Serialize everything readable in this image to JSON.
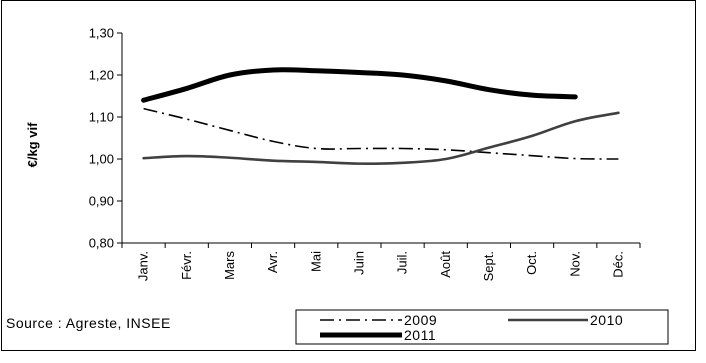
{
  "chart_data": {
    "type": "line",
    "ylabel": "€/kg vif",
    "ylim": [
      0.8,
      1.3
    ],
    "yticks": [
      "0,80",
      "0,90",
      "1,00",
      "1,10",
      "1,20",
      "1,30"
    ],
    "yticks_values": [
      0.8,
      0.9,
      1.0,
      1.1,
      1.2,
      1.3
    ],
    "categories": [
      "Janv.",
      "Févr.",
      "Mars",
      "Avr.",
      "Mai",
      "Juin",
      "Juil.",
      "Août",
      "Sept.",
      "Oct.",
      "Nov.",
      "Déc."
    ],
    "series": [
      {
        "name": "2009",
        "style": "dash-dot",
        "color": "#000000",
        "values": [
          1.12,
          1.095,
          1.068,
          1.042,
          1.025,
          1.025,
          1.025,
          1.022,
          1.015,
          1.008,
          1.001,
          1.0
        ]
      },
      {
        "name": "2010",
        "style": "solid-thin",
        "color": "#404040",
        "values": [
          1.002,
          1.007,
          1.003,
          0.996,
          0.993,
          0.989,
          0.991,
          1.0,
          1.027,
          1.055,
          1.09,
          1.11
        ]
      },
      {
        "name": "2011",
        "style": "solid-thick",
        "color": "#000000",
        "values": [
          1.14,
          1.168,
          1.2,
          1.212,
          1.21,
          1.206,
          1.2,
          1.186,
          1.165,
          1.152,
          1.148,
          null
        ]
      }
    ],
    "grid": false,
    "legend_position": "bottom-right"
  },
  "source": "Source : Agreste, INSEE"
}
